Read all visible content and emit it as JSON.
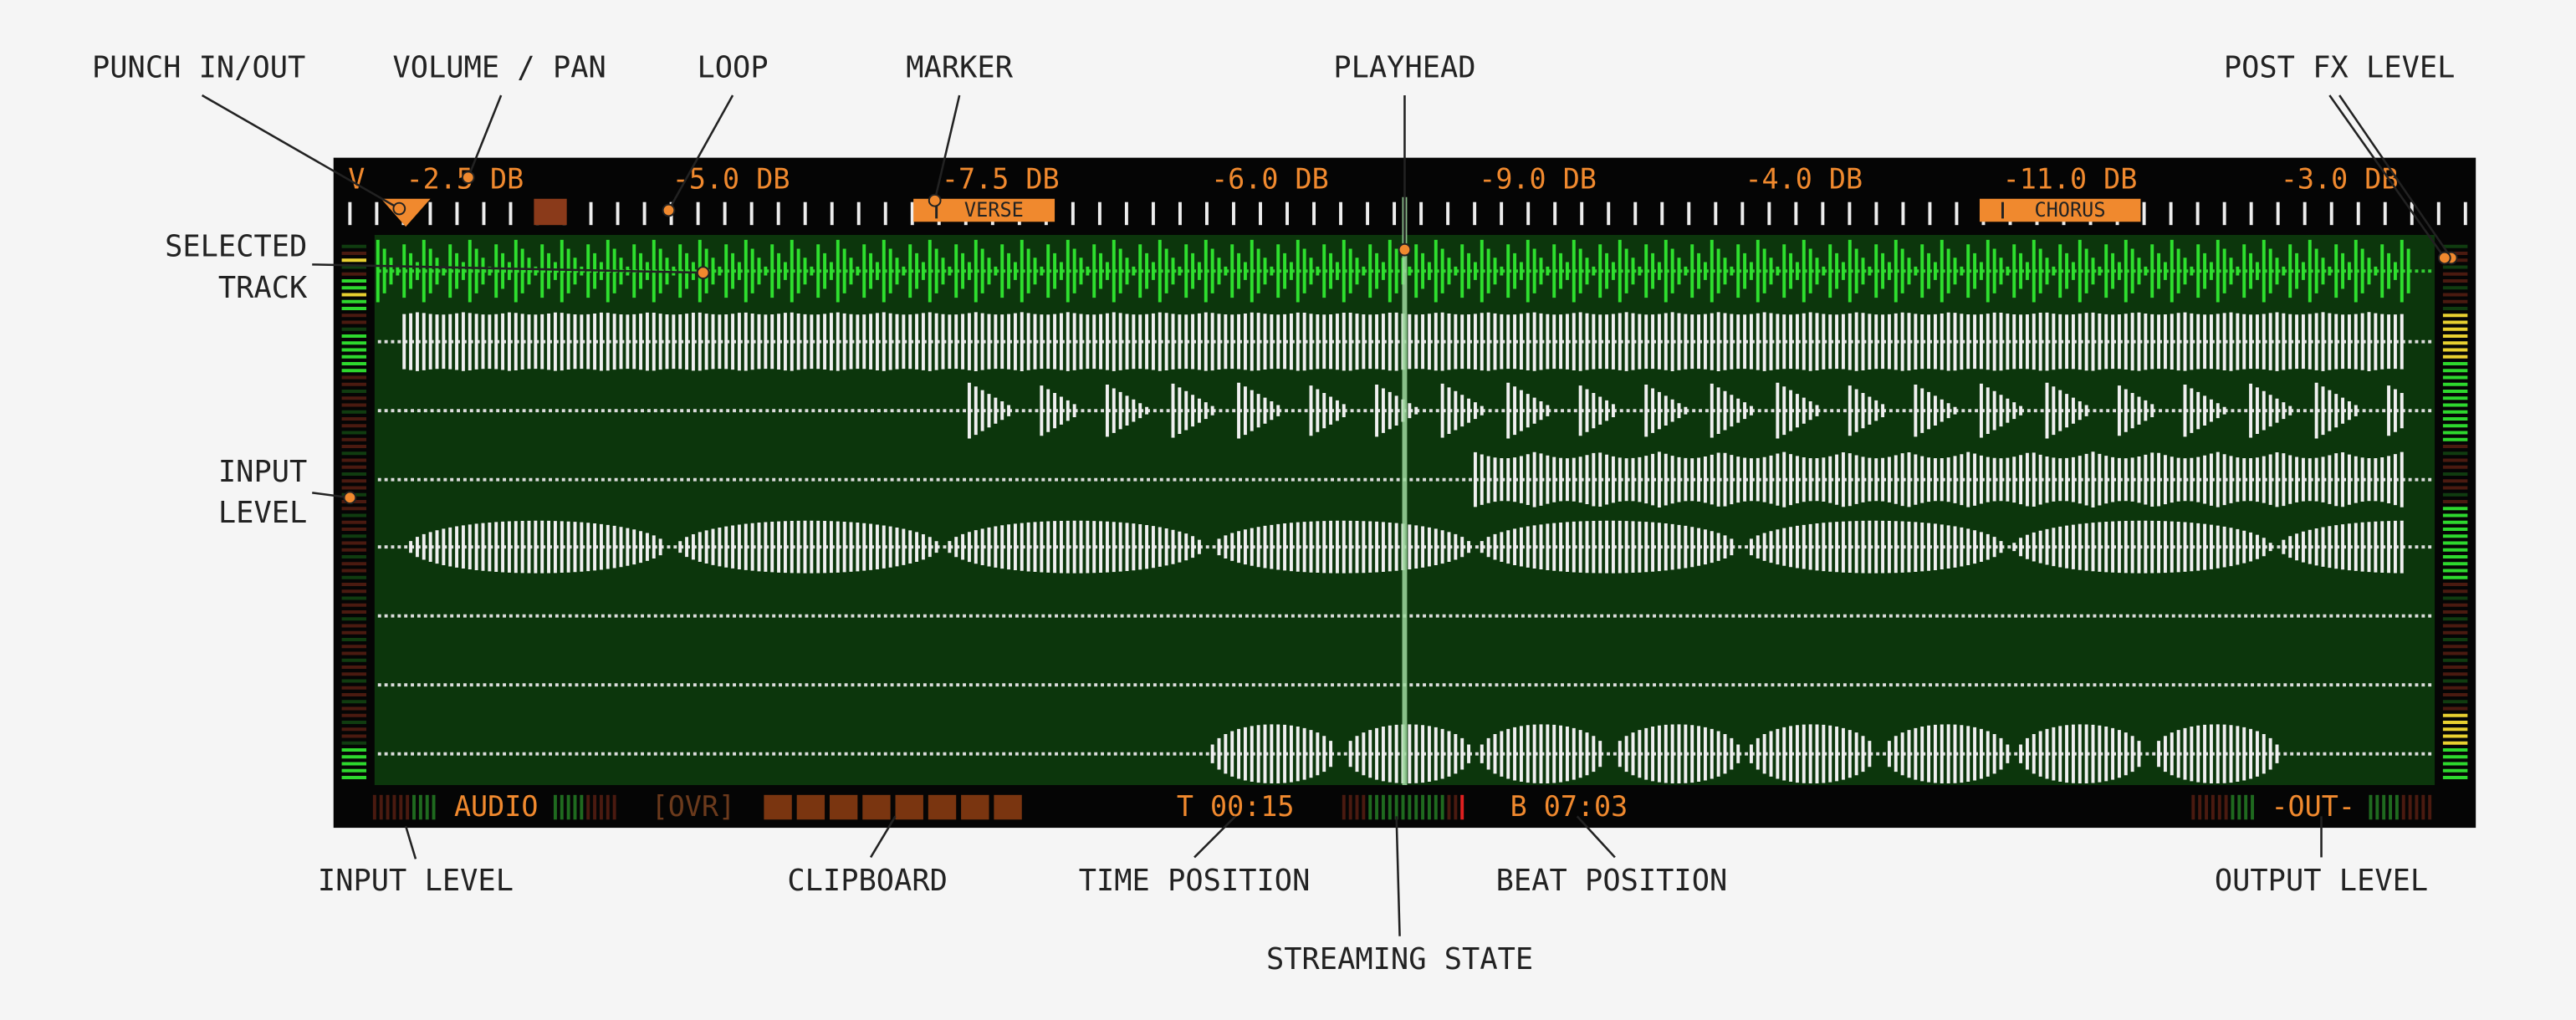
{
  "callouts": [
    {
      "label": "PUNCH IN/OUT"
    },
    {
      "label": "VOLUME / PAN"
    },
    {
      "label": "LOOP"
    },
    {
      "label": "MARKER"
    },
    {
      "label": "PLAYHEAD"
    },
    {
      "label": "POST FX LEVEL"
    },
    {
      "label": [
        "SELECTED",
        "TRACK"
      ]
    },
    {
      "label": [
        "INPUT",
        "LEVEL"
      ]
    },
    {
      "label": "INPUT LEVEL"
    },
    {
      "label": "CLIPBOARD"
    },
    {
      "label": "TIME POSITION"
    },
    {
      "label": "STREAMING STATE"
    },
    {
      "label": "BEAT POSITION"
    },
    {
      "label": "OUTPUT LEVEL"
    }
  ],
  "volume_labels": [
    "V",
    "-2.5 DB",
    "-5.0 DB",
    "-7.5 DB",
    "-6.0 DB",
    "-9.0 DB",
    "-4.0 DB",
    "-11.0 DB",
    "-3.0 DB"
  ],
  "markers": [
    "VERSE",
    "CHORUS"
  ],
  "status": {
    "mode": "AUDIO",
    "overwrite": "[OVR]",
    "time": "T 00:15",
    "beat": "B 07:03",
    "output": "-OUT-"
  }
}
